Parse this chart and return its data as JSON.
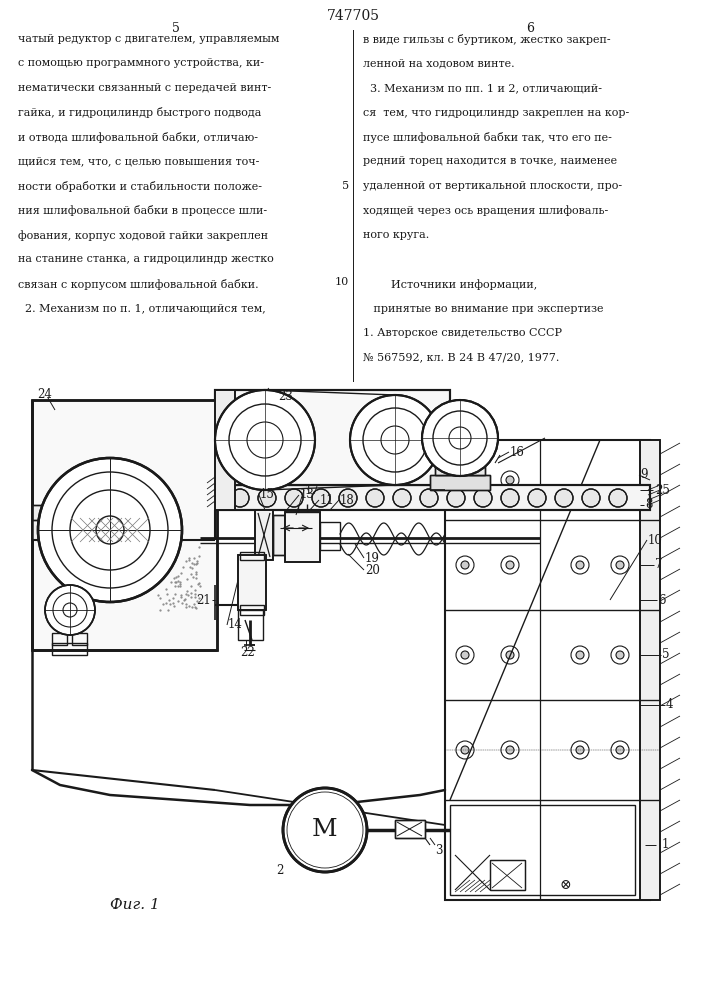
{
  "title": "747705",
  "bg_color": "#ffffff",
  "line_color": "#1a1a1a",
  "text_color": "#1a1a1a",
  "text_left": "чатый редуктор с двигателем, управляемым\nс помощью программного устройства, ки-\nнематически связанный с передачей винт-\nгайка, и гидроцилиндр быстрого подвода\nи отвода шлифовальной бабки, отличаю-\nщийся тем, что, с целью повышения точ-\nности обработки и стабильности положе-\nния шлифовальной бабки в процессе шли-\nфования, корпус ходовой гайки закреплен\nна станине станка, а гидроцилиндр жестко\nсвязан с корпусом шлифовальной бабки.\n  2. Механизм по п. 1, отличающийся тем,",
  "text_right": "в виде гильзы с буртиком, жестко закреп-\nленной на ходовом винте.\n  3. Механизм по пп. 1 и 2, отличающий-\nся  тем, что гидроцилиндр закреплен на кор-\nпусе шлифовальной бабки так, что его пе-\nредний торец находится в точке, наименее\nудаленной от вертикальной плоскости, про-\nходящей через ось вращения шлифоваль-\nного круга.\n\n        Источники информации,\n   принятые во внимание при экспертизе\n1. Авторское свидетельство СССР\n№ 567592, кл. В 24 В 47/20, 1977."
}
